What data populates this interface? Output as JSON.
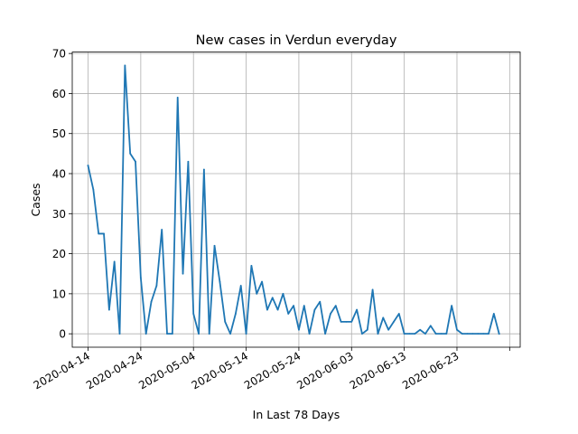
{
  "chart_data": {
    "type": "line",
    "title": "New cases in Verdun everyday",
    "xlabel": "In Last 78 Days",
    "ylabel": "Cases",
    "x_tick_labels": [
      "2020-04-14",
      "2020-04-24",
      "2020-05-04",
      "2020-05-14",
      "2020-05-24",
      "2020-06-03",
      "2020-06-13",
      "2020-06-23"
    ],
    "y_tick_labels": [
      "0",
      "10",
      "20",
      "30",
      "40",
      "50",
      "60",
      "70"
    ],
    "xlim": [
      "2020-04-11",
      "2020-07-05"
    ],
    "ylim": [
      -3.35,
      70.35
    ],
    "grid": true,
    "line_color": "#1f77b4",
    "series": [
      {
        "x": [
          "2020-04-14",
          "2020-04-15",
          "2020-04-16",
          "2020-04-17",
          "2020-04-18",
          "2020-04-19",
          "2020-04-20",
          "2020-04-21",
          "2020-04-22",
          "2020-04-23",
          "2020-04-24",
          "2020-04-25",
          "2020-04-26",
          "2020-04-27",
          "2020-04-28",
          "2020-04-29",
          "2020-04-30",
          "2020-05-01",
          "2020-05-02",
          "2020-05-03",
          "2020-05-04",
          "2020-05-05",
          "2020-05-06",
          "2020-05-07",
          "2020-05-08",
          "2020-05-09",
          "2020-05-10",
          "2020-05-11",
          "2020-05-12",
          "2020-05-13",
          "2020-05-14",
          "2020-05-15",
          "2020-05-16",
          "2020-05-17",
          "2020-05-18",
          "2020-05-19",
          "2020-05-20",
          "2020-05-21",
          "2020-05-22",
          "2020-05-23",
          "2020-05-24",
          "2020-05-25",
          "2020-05-26",
          "2020-05-27",
          "2020-05-28",
          "2020-05-29",
          "2020-05-30",
          "2020-05-31",
          "2020-06-01",
          "2020-06-02",
          "2020-06-03",
          "2020-06-04",
          "2020-06-05",
          "2020-06-06",
          "2020-06-07",
          "2020-06-08",
          "2020-06-09",
          "2020-06-10",
          "2020-06-11",
          "2020-06-12",
          "2020-06-13",
          "2020-06-14",
          "2020-06-15",
          "2020-06-16",
          "2020-06-17",
          "2020-06-18",
          "2020-06-19",
          "2020-06-20",
          "2020-06-21",
          "2020-06-22",
          "2020-06-23",
          "2020-06-24",
          "2020-06-25",
          "2020-06-26",
          "2020-06-27",
          "2020-06-28",
          "2020-06-29",
          "2020-06-30",
          "2020-07-01"
        ],
        "y": [
          42,
          36,
          25,
          25,
          6,
          18,
          0,
          67,
          45,
          43,
          14,
          0,
          8,
          12,
          26,
          0,
          0,
          59,
          15,
          43,
          5,
          0,
          41,
          0,
          22,
          13,
          3,
          0,
          5,
          12,
          0,
          17,
          10,
          13,
          6,
          9,
          6,
          10,
          5,
          7,
          1,
          7,
          0,
          6,
          8,
          0,
          5,
          7,
          3,
          3,
          3,
          6,
          0,
          1,
          11,
          0,
          4,
          1,
          3,
          5,
          0,
          0,
          0,
          1,
          0,
          2,
          0,
          0,
          0,
          7,
          1,
          0,
          0,
          0,
          0,
          0,
          0,
          5,
          0
        ]
      }
    ]
  }
}
